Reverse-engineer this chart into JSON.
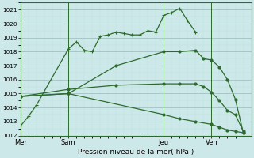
{
  "bg_color": "#cce8e8",
  "grid_color": "#b8d8d8",
  "line_color": "#2d6b2d",
  "ylabel": "Pression niveau de la mer( hPa )",
  "ylim": [
    1012,
    1021.5
  ],
  "yticks": [
    1012,
    1013,
    1014,
    1015,
    1016,
    1017,
    1018,
    1019,
    1020,
    1021
  ],
  "xtick_labels": [
    "Mer",
    "Sam",
    "Jeu",
    "Ven"
  ],
  "xtick_positions": [
    0,
    24,
    72,
    96
  ],
  "vlines": [
    0,
    24,
    72,
    96
  ],
  "series1_x": [
    0,
    4,
    8,
    24,
    28,
    32,
    36,
    40,
    44,
    48,
    52,
    56,
    60,
    64,
    68,
    72,
    76,
    80,
    84,
    88
  ],
  "series1_y": [
    1012.7,
    1013.4,
    1014.2,
    1018.2,
    1018.7,
    1018.1,
    1018.0,
    1019.1,
    1019.2,
    1019.4,
    1019.3,
    1019.2,
    1019.2,
    1019.5,
    1019.4,
    1020.6,
    1020.8,
    1021.1,
    1020.2,
    1019.4
  ],
  "series2_x": [
    0,
    24,
    48,
    72,
    80,
    88,
    92,
    96,
    100,
    104,
    108,
    112
  ],
  "series2_y": [
    1014.8,
    1015.0,
    1017.0,
    1018.0,
    1018.0,
    1018.1,
    1017.5,
    1017.4,
    1016.9,
    1016.0,
    1014.6,
    1012.2
  ],
  "series3_x": [
    0,
    24,
    48,
    72,
    80,
    88,
    92,
    96,
    100,
    104,
    108,
    112
  ],
  "series3_y": [
    1014.8,
    1015.3,
    1015.6,
    1015.7,
    1015.7,
    1015.7,
    1015.5,
    1015.1,
    1014.5,
    1013.8,
    1013.5,
    1012.3
  ],
  "series4_x": [
    0,
    24,
    72,
    80,
    88,
    96,
    100,
    104,
    108,
    112
  ],
  "series4_y": [
    1014.8,
    1015.0,
    1013.5,
    1013.2,
    1013.0,
    1012.8,
    1012.6,
    1012.4,
    1012.3,
    1012.2
  ],
  "xlim": [
    0,
    116
  ]
}
